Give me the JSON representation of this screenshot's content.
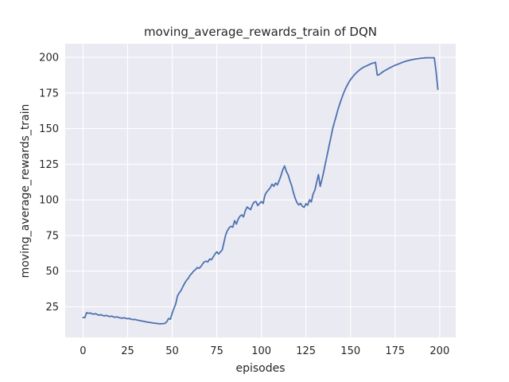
{
  "chart_data": {
    "type": "line",
    "title": "moving_average_rewards_train of DQN",
    "xlabel": "episodes",
    "ylabel": "moving_average_rewards_train",
    "x_ticks": [
      0,
      25,
      50,
      75,
      100,
      125,
      150,
      175,
      200
    ],
    "y_ticks": [
      25,
      50,
      75,
      100,
      125,
      150,
      175,
      200
    ],
    "xlim": [
      -10,
      209
    ],
    "ylim": [
      3.5,
      209.5
    ],
    "grid": true,
    "legend": false,
    "styles": {
      "figure_bg": "#ffffff",
      "plot_bg": "#eaeaf2",
      "grid_color": "#ffffff",
      "line_color": "#4c72b0",
      "text_color": "#262626"
    },
    "series": [
      {
        "name": "moving_average_rewards_train",
        "points": [
          [
            0,
            17.5
          ],
          [
            1,
            17.4
          ],
          [
            2,
            20.9
          ],
          [
            3,
            20.4
          ],
          [
            4,
            20.7
          ],
          [
            5,
            20.1
          ],
          [
            6,
            19.8
          ],
          [
            7,
            20.2
          ],
          [
            8,
            19.5
          ],
          [
            9,
            19.1
          ],
          [
            10,
            19.5
          ],
          [
            11,
            18.9
          ],
          [
            12,
            18.6
          ],
          [
            13,
            19.0
          ],
          [
            14,
            18.4
          ],
          [
            15,
            18.1
          ],
          [
            16,
            18.5
          ],
          [
            17,
            17.9
          ],
          [
            18,
            17.6
          ],
          [
            19,
            18.0
          ],
          [
            20,
            17.4
          ],
          [
            21,
            17.2
          ],
          [
            22,
            17.0
          ],
          [
            23,
            17.3
          ],
          [
            24,
            16.9
          ],
          [
            25,
            16.6
          ],
          [
            26,
            16.8
          ],
          [
            27,
            16.3
          ],
          [
            28,
            16.0
          ],
          [
            29,
            16.2
          ],
          [
            30,
            15.8
          ],
          [
            31,
            15.5
          ],
          [
            32,
            15.3
          ],
          [
            33,
            15.0
          ],
          [
            34,
            14.8
          ],
          [
            35,
            14.5
          ],
          [
            36,
            14.3
          ],
          [
            37,
            14.1
          ],
          [
            38,
            13.9
          ],
          [
            39,
            13.7
          ],
          [
            40,
            13.5
          ],
          [
            41,
            13.4
          ],
          [
            42,
            13.2
          ],
          [
            43,
            13.1
          ],
          [
            44,
            13.1
          ],
          [
            45,
            13.2
          ],
          [
            46,
            13.4
          ],
          [
            47,
            14.6
          ],
          [
            48,
            16.8
          ],
          [
            49,
            16.3
          ],
          [
            50,
            20.6
          ],
          [
            51,
            24.0
          ],
          [
            52,
            27.1
          ],
          [
            53,
            32.7
          ],
          [
            54,
            34.8
          ],
          [
            55,
            36.5
          ],
          [
            56,
            39.2
          ],
          [
            57,
            41.5
          ],
          [
            58,
            43.5
          ],
          [
            59,
            45.0
          ],
          [
            60,
            47.0
          ],
          [
            61,
            48.5
          ],
          [
            62,
            50.0
          ],
          [
            63,
            51.0
          ],
          [
            64,
            52.5
          ],
          [
            65,
            52.0
          ],
          [
            66,
            53.0
          ],
          [
            67,
            55.0
          ],
          [
            68,
            56.5
          ],
          [
            69,
            57.0
          ],
          [
            70,
            56.5
          ],
          [
            71,
            58.5
          ],
          [
            72,
            58.0
          ],
          [
            73,
            60.0
          ],
          [
            74,
            62.0
          ],
          [
            75,
            63.5
          ],
          [
            76,
            62.0
          ],
          [
            77,
            63.5
          ],
          [
            78,
            64.7
          ],
          [
            79,
            70.0
          ],
          [
            80,
            75.5
          ],
          [
            81,
            78.5
          ],
          [
            82,
            80.5
          ],
          [
            83,
            81.5
          ],
          [
            84,
            80.8
          ],
          [
            85,
            85.4
          ],
          [
            86,
            83.0
          ],
          [
            87,
            86.5
          ],
          [
            88,
            88.5
          ],
          [
            89,
            89.5
          ],
          [
            90,
            88.0
          ],
          [
            91,
            92.3
          ],
          [
            92,
            95.0
          ],
          [
            93,
            94.0
          ],
          [
            94,
            93.2
          ],
          [
            95,
            96.5
          ],
          [
            96,
            98.5
          ],
          [
            97,
            98.8
          ],
          [
            98,
            96.0
          ],
          [
            99,
            97.5
          ],
          [
            100,
            98.8
          ],
          [
            101,
            97.5
          ],
          [
            102,
            103.4
          ],
          [
            103,
            105.5
          ],
          [
            104,
            107.0
          ],
          [
            105,
            108.5
          ],
          [
            106,
            111.0
          ],
          [
            107,
            109.5
          ],
          [
            108,
            111.8
          ],
          [
            109,
            110.5
          ],
          [
            110,
            113.5
          ],
          [
            111,
            117.0
          ],
          [
            112,
            121.0
          ],
          [
            113,
            123.8
          ],
          [
            114,
            120.0
          ],
          [
            115,
            117.5
          ],
          [
            116,
            113.5
          ],
          [
            117,
            110.0
          ],
          [
            118,
            105.0
          ],
          [
            119,
            101.0
          ],
          [
            120,
            98.0
          ],
          [
            121,
            96.5
          ],
          [
            122,
            97.5
          ],
          [
            123,
            95.5
          ],
          [
            124,
            94.8
          ],
          [
            125,
            97.3
          ],
          [
            126,
            96.3
          ],
          [
            127,
            100.0
          ],
          [
            128,
            98.5
          ],
          [
            129,
            104.0
          ],
          [
            130,
            106.8
          ],
          [
            131,
            112.2
          ],
          [
            132,
            117.8
          ],
          [
            133,
            109.5
          ],
          [
            134,
            114.2
          ],
          [
            135,
            120.0
          ],
          [
            136,
            126.0
          ],
          [
            137,
            132.0
          ],
          [
            138,
            138.0
          ],
          [
            139,
            144.0
          ],
          [
            140,
            150.0
          ],
          [
            141,
            154.5
          ],
          [
            142,
            159.0
          ],
          [
            143,
            163.5
          ],
          [
            144,
            167.5
          ],
          [
            145,
            171.0
          ],
          [
            146,
            174.5
          ],
          [
            147,
            177.5
          ],
          [
            148,
            180.0
          ],
          [
            149,
            182.3
          ],
          [
            150,
            184.3
          ],
          [
            151,
            186.0
          ],
          [
            152,
            187.5
          ],
          [
            153,
            188.8
          ],
          [
            154,
            190.0
          ],
          [
            155,
            191.0
          ],
          [
            156,
            192.0
          ],
          [
            157,
            192.8
          ],
          [
            158,
            193.5
          ],
          [
            159,
            194.0
          ],
          [
            160,
            194.6
          ],
          [
            161,
            195.2
          ],
          [
            162,
            195.7
          ],
          [
            163,
            196.1
          ],
          [
            164,
            196.5
          ],
          [
            165,
            187.5
          ],
          [
            166,
            187.8
          ],
          [
            167,
            188.8
          ],
          [
            168,
            189.7
          ],
          [
            169,
            190.5
          ],
          [
            170,
            191.2
          ],
          [
            171,
            191.9
          ],
          [
            172,
            192.6
          ],
          [
            173,
            193.2
          ],
          [
            174,
            193.8
          ],
          [
            175,
            194.4
          ],
          [
            176,
            194.9
          ],
          [
            177,
            195.4
          ],
          [
            178,
            195.9
          ],
          [
            179,
            196.4
          ],
          [
            180,
            196.8
          ],
          [
            181,
            197.2
          ],
          [
            182,
            197.6
          ],
          [
            183,
            197.9
          ],
          [
            184,
            198.2
          ],
          [
            185,
            198.5
          ],
          [
            186,
            198.7
          ],
          [
            187,
            198.9
          ],
          [
            188,
            199.1
          ],
          [
            189,
            199.3
          ],
          [
            190,
            199.4
          ],
          [
            191,
            199.5
          ],
          [
            192,
            199.6
          ],
          [
            193,
            199.7
          ],
          [
            194,
            199.7
          ],
          [
            195,
            199.7
          ],
          [
            196,
            199.7
          ],
          [
            197,
            199.6
          ],
          [
            198,
            190.0
          ],
          [
            199,
            177.5
          ]
        ]
      }
    ]
  }
}
